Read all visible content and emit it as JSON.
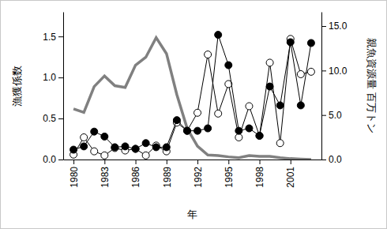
{
  "chart_data": {
    "type": "line",
    "x_label": "年",
    "y_label": "漁獲係数",
    "y2_label": "親魚資源量 百万トン",
    "x": [
      1980,
      1981,
      1982,
      1983,
      1984,
      1985,
      1986,
      1987,
      1988,
      1989,
      1990,
      1991,
      1992,
      1993,
      1994,
      1995,
      1996,
      1997,
      1998,
      1999,
      2000,
      2001,
      2002,
      2003
    ],
    "xlim": [
      1979,
      2004
    ],
    "xticks": [
      1980,
      1983,
      1986,
      1989,
      1992,
      1995,
      1998,
      2001
    ],
    "ylim": [
      0,
      1.8
    ],
    "yticks": [
      {
        "value": 0,
        "label": "0.0"
      },
      {
        "value": 0.5,
        "label": "0.5"
      },
      {
        "value": 1,
        "label": "1.0"
      },
      {
        "value": 1.5,
        "label": "1.5"
      }
    ],
    "y2lim": [
      0,
      16.6
    ],
    "y2ticks": [
      {
        "value": 0,
        "label": "0.0"
      },
      {
        "value": 5,
        "label": "5.0"
      },
      {
        "value": 10,
        "label": "10.0"
      },
      {
        "value": 15,
        "label": "15.0"
      }
    ],
    "grid": false,
    "series": [
      {
        "color": "#808080",
        "axis": "y2",
        "marker": "none",
        "line_style": "solid",
        "values": [
          5.7,
          5.3,
          8.2,
          9.4,
          8.3,
          8.1,
          10.6,
          11.5,
          13.7,
          11.9,
          7.3,
          3.5,
          1.5,
          0.5,
          0.45,
          0.3,
          0.2,
          0.45,
          0.35,
          0.35,
          0.2,
          0.1,
          0.05,
          0.0
        ]
      },
      {
        "color": "#000000",
        "marker": "circle_open",
        "line_style": "solid",
        "values": [
          0.06,
          0.27,
          0.1,
          0.05,
          0.14,
          0.11,
          0.13,
          0.05,
          0.17,
          0.1,
          0.45,
          0.35,
          0.57,
          1.28,
          0.56,
          0.92,
          0.27,
          0.65,
          0.29,
          1.18,
          0.2,
          1.47,
          1.04,
          1.07
        ]
      },
      {
        "color": "#000000",
        "marker": "circle_filled",
        "line_style": "solid",
        "values": [
          0.12,
          0.16,
          0.34,
          0.28,
          0.15,
          0.16,
          0.13,
          0.2,
          0.15,
          0.15,
          0.48,
          0.35,
          0.35,
          0.38,
          1.52,
          1.15,
          0.35,
          0.38,
          0.29,
          0.89,
          0.66,
          1.43,
          0.66,
          1.42
        ]
      }
    ]
  }
}
